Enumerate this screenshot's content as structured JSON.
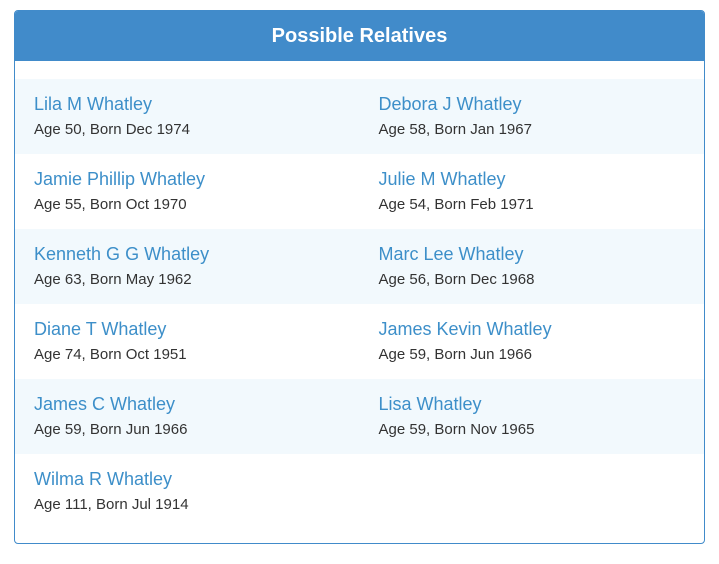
{
  "panel": {
    "title": "Possible Relatives",
    "accent_color": "#418bca",
    "link_color": "#3d8fc9",
    "stripe_color": "#f2f9fd"
  },
  "relatives": [
    {
      "name": "Lila M Whatley",
      "info": "Age 50, Born Dec 1974"
    },
    {
      "name": "Debora J Whatley",
      "info": "Age 58, Born Jan 1967"
    },
    {
      "name": "Jamie Phillip Whatley",
      "info": "Age 55, Born Oct 1970"
    },
    {
      "name": "Julie M Whatley",
      "info": "Age 54, Born Feb 1971"
    },
    {
      "name": "Kenneth G G Whatley",
      "info": "Age 63, Born May 1962"
    },
    {
      "name": "Marc Lee Whatley",
      "info": "Age 56, Born Dec 1968"
    },
    {
      "name": "Diane T Whatley",
      "info": "Age 74, Born Oct 1951"
    },
    {
      "name": "James Kevin Whatley",
      "info": "Age 59, Born Jun 1966"
    },
    {
      "name": "James C Whatley",
      "info": "Age 59, Born Jun 1966"
    },
    {
      "name": "Lisa Whatley",
      "info": "Age 59, Born Nov 1965"
    },
    {
      "name": "Wilma R Whatley",
      "info": "Age 111, Born Jul 1914"
    }
  ]
}
